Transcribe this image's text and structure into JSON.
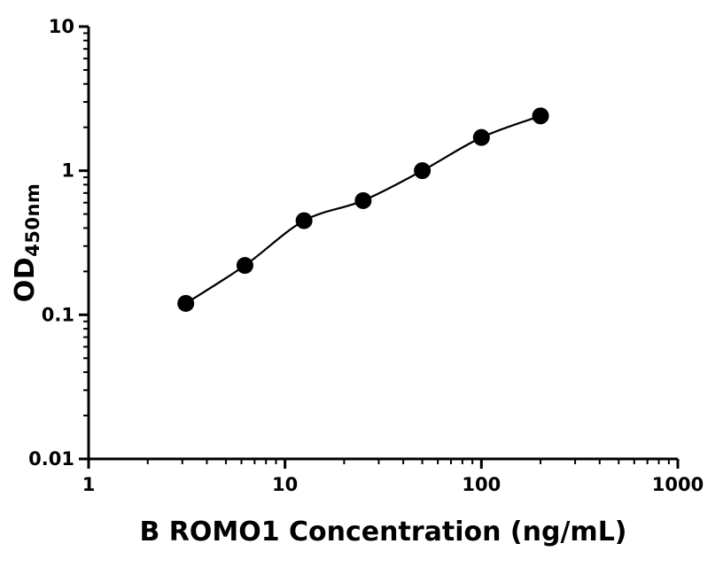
{
  "chart_data": {
    "type": "scatter",
    "title": "",
    "xlabel": "B ROMO1 Concentration (ng/mL)",
    "ylabel_main": "OD",
    "ylabel_sub": "450nm",
    "xscale": "log",
    "yscale": "log",
    "xlim": [
      1,
      1000
    ],
    "ylim": [
      0.01,
      10
    ],
    "x_ticks": [
      1,
      10,
      100,
      1000
    ],
    "x_tick_labels": [
      "1",
      "10",
      "100",
      "1000"
    ],
    "y_ticks": [
      10,
      1,
      0.1,
      0.01
    ],
    "y_tick_labels": [
      "10",
      "1",
      "0.1",
      "0.01"
    ],
    "grid": false,
    "legend": false,
    "marker_color": "#000000",
    "line_color": "#000000",
    "axis_color": "#000000",
    "x": [
      3.125,
      6.25,
      12.5,
      25,
      50,
      100,
      200
    ],
    "y": [
      0.12,
      0.22,
      0.45,
      0.62,
      1.0,
      1.7,
      2.4
    ],
    "fit": "smooth standard-curve fit line through points"
  }
}
